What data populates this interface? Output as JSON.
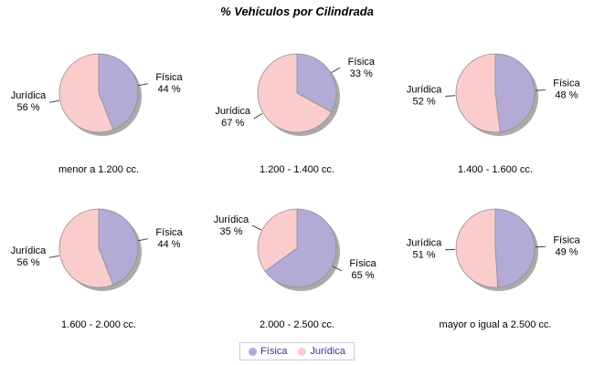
{
  "title": "% Vehículos por Cilindrada",
  "colors": {
    "slice_stroke": "#909090",
    "shadow": "#9b9b9b",
    "leader_line": "#404040",
    "label_text": "#000000",
    "legend_text": "#472f87",
    "legend_border": "#c9c9db",
    "background": "#ffffff"
  },
  "legend": {
    "entries": [
      {
        "label": "Física",
        "color": "#b4aad6"
      },
      {
        "label": "Jurídica",
        "color": "#facccc"
      }
    ]
  },
  "chart_data": {
    "type": "pie",
    "title": "% Vehículos por Cilindrada",
    "legend_position": "bottom",
    "series_names": [
      "Física",
      "Jurídica"
    ],
    "series_colors": {
      "Física": "#b4aad6",
      "Jurídica": "#facccc"
    },
    "layout": {
      "rows": 2,
      "cols": 3,
      "start_angle_deg": 0,
      "direction": "clockwise"
    },
    "pies": [
      {
        "category": "menor a 1.200 cc.",
        "slices": [
          {
            "label": "Física",
            "value": 44,
            "display": "44 %"
          },
          {
            "label": "Jurídica",
            "value": 56,
            "display": "56 %"
          }
        ]
      },
      {
        "category": "1.200 - 1.400 cc.",
        "slices": [
          {
            "label": "Física",
            "value": 33,
            "display": "33 %"
          },
          {
            "label": "Jurídica",
            "value": 67,
            "display": "67 %"
          }
        ]
      },
      {
        "category": "1.400 - 1.600 cc.",
        "slices": [
          {
            "label": "Física",
            "value": 48,
            "display": "48 %"
          },
          {
            "label": "Jurídica",
            "value": 52,
            "display": "52 %"
          }
        ]
      },
      {
        "category": "1.600 - 2.000 cc.",
        "slices": [
          {
            "label": "Física",
            "value": 44,
            "display": "44 %"
          },
          {
            "label": "Jurídica",
            "value": 56,
            "display": "56 %"
          }
        ]
      },
      {
        "category": "2.000 - 2.500 cc.",
        "slices": [
          {
            "label": "Física",
            "value": 65,
            "display": "65 %"
          },
          {
            "label": "Jurídica",
            "value": 35,
            "display": "35 %"
          }
        ]
      },
      {
        "category": "mayor o igual a 2.500 cc.",
        "slices": [
          {
            "label": "Física",
            "value": 49,
            "display": "49 %"
          },
          {
            "label": "Jurídica",
            "value": 51,
            "display": "51 %"
          }
        ]
      }
    ]
  }
}
